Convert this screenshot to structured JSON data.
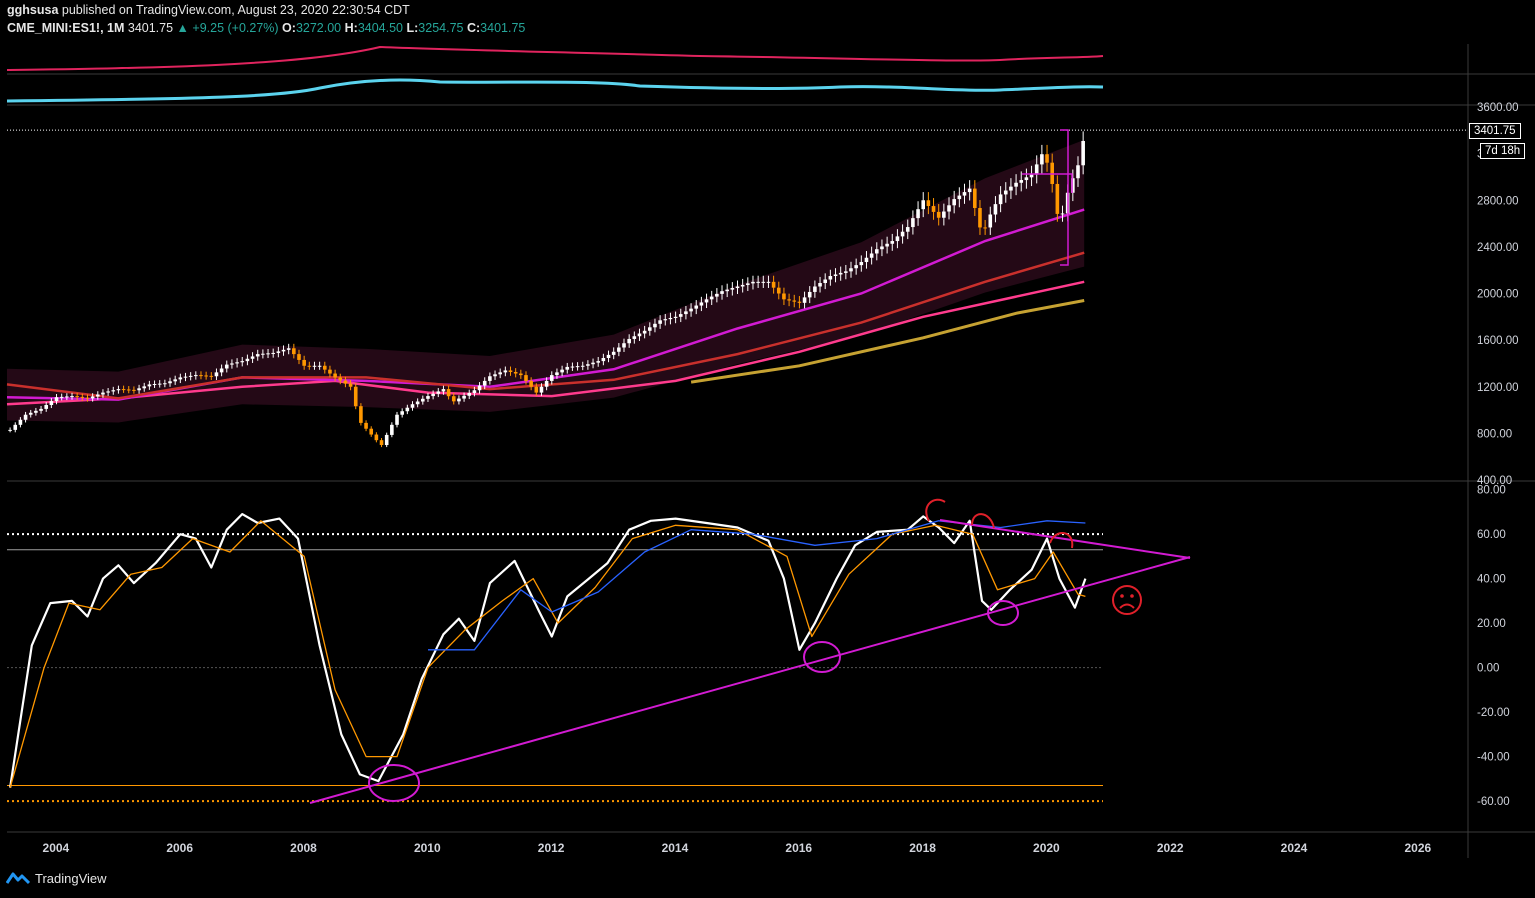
{
  "header": {
    "author": "gghsusa",
    "published_text": "published on TradingView.com, August 23, 2020 22:30:54 CDT",
    "symbol": "CME_MINI:ES1!, 1M",
    "last": "3401.75",
    "change": "▲ +9.25 (+0.27%)",
    "o_label": "O:",
    "o": "3272.00",
    "h_label": "H:",
    "h": "3404.50",
    "l_label": "L:",
    "l": "3254.75",
    "c_label": "C:",
    "c": "3401.75"
  },
  "price_tag": "3401.75",
  "countdown_tag": "7d 18h",
  "footer": {
    "brand": "TradingView"
  },
  "colors": {
    "background": "#000000",
    "accent_up": "#26a69a",
    "price_candle_up": "#ffffff",
    "price_candle_down": "#ff9800",
    "annotation": "#d21bd2",
    "annotation_red": "#e0202a"
  },
  "chart_data": [
    {
      "type": "candlestick",
      "panel": "price",
      "y_ticks": [
        "3600.00",
        "3200.00",
        "2800.00",
        "2400.00",
        "2000.00",
        "1600.00",
        "1200.00",
        "800.00",
        "400.00"
      ],
      "ylim": [
        400,
        3600
      ],
      "x_ticks": [
        "2004",
        "2006",
        "2008",
        "2010",
        "2012",
        "2014",
        "2016",
        "2018",
        "2020",
        "2022",
        "2024",
        "2026"
      ],
      "xlim": [
        2003.2,
        2026.8
      ],
      "last_price": 3401.75,
      "price_series": [
        [
          2003.25,
          830
        ],
        [
          2003.5,
          960
        ],
        [
          2003.75,
          1010
        ],
        [
          2004.0,
          1110
        ],
        [
          2004.25,
          1120
        ],
        [
          2004.5,
          1100
        ],
        [
          2004.75,
          1150
        ],
        [
          2005.0,
          1180
        ],
        [
          2005.25,
          1170
        ],
        [
          2005.5,
          1220
        ],
        [
          2005.75,
          1230
        ],
        [
          2006.0,
          1280
        ],
        [
          2006.25,
          1300
        ],
        [
          2006.5,
          1290
        ],
        [
          2006.75,
          1390
        ],
        [
          2007.0,
          1420
        ],
        [
          2007.25,
          1480
        ],
        [
          2007.5,
          1490
        ],
        [
          2007.75,
          1530
        ],
        [
          2008.0,
          1380
        ],
        [
          2008.25,
          1380
        ],
        [
          2008.5,
          1280
        ],
        [
          2008.75,
          1200
        ],
        [
          2008.9,
          900
        ],
        [
          2009.15,
          750
        ],
        [
          2009.25,
          700
        ],
        [
          2009.5,
          960
        ],
        [
          2009.75,
          1050
        ],
        [
          2010.0,
          1120
        ],
        [
          2010.25,
          1180
        ],
        [
          2010.4,
          1070
        ],
        [
          2010.75,
          1170
        ],
        [
          2011.0,
          1290
        ],
        [
          2011.25,
          1340
        ],
        [
          2011.5,
          1300
        ],
        [
          2011.75,
          1150
        ],
        [
          2012.0,
          1300
        ],
        [
          2012.25,
          1370
        ],
        [
          2012.5,
          1380
        ],
        [
          2012.75,
          1420
        ],
        [
          2013.0,
          1500
        ],
        [
          2013.25,
          1610
        ],
        [
          2013.5,
          1680
        ],
        [
          2013.75,
          1770
        ],
        [
          2014.0,
          1800
        ],
        [
          2014.25,
          1870
        ],
        [
          2014.5,
          1950
        ],
        [
          2014.75,
          2020
        ],
        [
          2015.0,
          2060
        ],
        [
          2015.25,
          2100
        ],
        [
          2015.5,
          2100
        ],
        [
          2015.75,
          1950
        ],
        [
          2016.0,
          1920
        ],
        [
          2016.25,
          2060
        ],
        [
          2016.5,
          2150
        ],
        [
          2016.75,
          2190
        ],
        [
          2017.0,
          2270
        ],
        [
          2017.25,
          2380
        ],
        [
          2017.5,
          2450
        ],
        [
          2017.75,
          2570
        ],
        [
          2018.0,
          2800
        ],
        [
          2018.25,
          2650
        ],
        [
          2018.5,
          2810
        ],
        [
          2018.75,
          2900
        ],
        [
          2018.95,
          2500
        ],
        [
          2019.1,
          2700
        ],
        [
          2019.25,
          2850
        ],
        [
          2019.5,
          2950
        ],
        [
          2019.75,
          3020
        ],
        [
          2019.95,
          3230
        ],
        [
          2020.08,
          2950
        ],
        [
          2020.2,
          2580
        ],
        [
          2020.35,
          2900
        ],
        [
          2020.5,
          3100
        ],
        [
          2020.62,
          3400
        ]
      ],
      "moving_averages": [
        {
          "color": "#ff3b8d",
          "values": [
            [
              2003.2,
              1050
            ],
            [
              2005,
              1100
            ],
            [
              2007,
              1200
            ],
            [
              2008.5,
              1250
            ],
            [
              2010,
              1150
            ],
            [
              2012,
              1120
            ],
            [
              2014,
              1250
            ],
            [
              2016,
              1500
            ],
            [
              2018,
              1800
            ],
            [
              2020.6,
              2100
            ]
          ]
        },
        {
          "color": "#d21bd2",
          "values": [
            [
              2003.2,
              1110
            ],
            [
              2005,
              1090
            ],
            [
              2007,
              1280
            ],
            [
              2009,
              1250
            ],
            [
              2011,
              1200
            ],
            [
              2013,
              1350
            ],
            [
              2015,
              1700
            ],
            [
              2017,
              2000
            ],
            [
              2019,
              2450
            ],
            [
              2020.6,
              2720
            ]
          ]
        },
        {
          "color": "#c9302c",
          "values": [
            [
              2003.2,
              1220
            ],
            [
              2005,
              1100
            ],
            [
              2007,
              1280
            ],
            [
              2009,
              1280
            ],
            [
              2011,
              1180
            ],
            [
              2013,
              1260
            ],
            [
              2015,
              1480
            ],
            [
              2017,
              1750
            ],
            [
              2019,
              2100
            ],
            [
              2020.6,
              2350
            ]
          ]
        },
        {
          "color": "#c6a232",
          "values": [
            [
              2014.25,
              1240
            ],
            [
              2016,
              1380
            ],
            [
              2018,
              1620
            ],
            [
              2019.5,
              1830
            ],
            [
              2020.6,
              1940
            ]
          ]
        }
      ]
    },
    {
      "type": "line",
      "panel": "oscillator",
      "y_ticks": [
        "80.00",
        "60.00",
        "40.00",
        "20.00",
        "0.00",
        "-20.00",
        "-40.00",
        "-60.00"
      ],
      "ylim": [
        -73,
        83
      ],
      "reference_levels": [
        60,
        53,
        0,
        -53,
        -60
      ],
      "series": [
        {
          "color": "#ffffff",
          "values": [
            [
              2003.25,
              -54
            ],
            [
              2003.6,
              10
            ],
            [
              2003.9,
              29
            ],
            [
              2004.25,
              30
            ],
            [
              2004.5,
              23
            ],
            [
              2004.75,
              40
            ],
            [
              2005.0,
              46
            ],
            [
              2005.25,
              38
            ],
            [
              2005.6,
              47
            ],
            [
              2006.0,
              60
            ],
            [
              2006.25,
              58
            ],
            [
              2006.5,
              45
            ],
            [
              2006.75,
              62
            ],
            [
              2007.0,
              69
            ],
            [
              2007.25,
              65
            ],
            [
              2007.6,
              67
            ],
            [
              2007.9,
              58
            ],
            [
              2008.25,
              10
            ],
            [
              2008.6,
              -30
            ],
            [
              2008.9,
              -48
            ],
            [
              2009.2,
              -51
            ],
            [
              2009.6,
              -30
            ],
            [
              2009.9,
              -5
            ],
            [
              2010.25,
              15
            ],
            [
              2010.5,
              22
            ],
            [
              2010.75,
              12
            ],
            [
              2011.0,
              38
            ],
            [
              2011.4,
              48
            ],
            [
              2011.8,
              25
            ],
            [
              2012.0,
              14
            ],
            [
              2012.25,
              32
            ],
            [
              2012.6,
              40
            ],
            [
              2012.9,
              47
            ],
            [
              2013.25,
              62
            ],
            [
              2013.6,
              66
            ],
            [
              2014.0,
              67
            ],
            [
              2014.5,
              65
            ],
            [
              2015.0,
              63
            ],
            [
              2015.5,
              57
            ],
            [
              2015.75,
              40
            ],
            [
              2016.0,
              8
            ],
            [
              2016.25,
              20
            ],
            [
              2016.6,
              40
            ],
            [
              2016.9,
              55
            ],
            [
              2017.25,
              61
            ],
            [
              2017.75,
              62
            ],
            [
              2018.0,
              68
            ],
            [
              2018.25,
              63
            ],
            [
              2018.5,
              56
            ],
            [
              2018.75,
              66
            ],
            [
              2018.95,
              30
            ],
            [
              2019.1,
              26
            ],
            [
              2019.4,
              35
            ],
            [
              2019.75,
              44
            ],
            [
              2020.0,
              58
            ],
            [
              2020.2,
              40
            ],
            [
              2020.45,
              27
            ],
            [
              2020.62,
              40
            ]
          ]
        },
        {
          "color": "#ff9800",
          "values": [
            [
              2003.25,
              -54
            ],
            [
              2003.8,
              0
            ],
            [
              2004.2,
              29
            ],
            [
              2004.7,
              26
            ],
            [
              2005.2,
              42
            ],
            [
              2005.7,
              45
            ],
            [
              2006.2,
              58
            ],
            [
              2006.8,
              52
            ],
            [
              2007.3,
              66
            ],
            [
              2008.0,
              50
            ],
            [
              2008.5,
              -10
            ],
            [
              2009.0,
              -40
            ],
            [
              2009.5,
              -40
            ],
            [
              2010.0,
              0
            ],
            [
              2010.6,
              17
            ],
            [
              2011.2,
              30
            ],
            [
              2011.7,
              40
            ],
            [
              2012.1,
              20
            ],
            [
              2012.7,
              36
            ],
            [
              2013.3,
              58
            ],
            [
              2014.0,
              64
            ],
            [
              2015.0,
              62
            ],
            [
              2015.8,
              50
            ],
            [
              2016.2,
              14
            ],
            [
              2016.8,
              42
            ],
            [
              2017.5,
              60
            ],
            [
              2018.2,
              64
            ],
            [
              2018.8,
              60
            ],
            [
              2019.2,
              35
            ],
            [
              2019.8,
              40
            ],
            [
              2020.1,
              52
            ],
            [
              2020.5,
              33
            ],
            [
              2020.62,
              32
            ]
          ]
        },
        {
          "color": "#2962ff",
          "values": [
            [
              2010.0,
              8
            ],
            [
              2010.75,
              8
            ],
            [
              2011.5,
              35
            ],
            [
              2012.0,
              25
            ],
            [
              2012.75,
              34
            ],
            [
              2013.5,
              52
            ],
            [
              2014.25,
              62
            ],
            [
              2015.25,
              60
            ],
            [
              2016.25,
              55
            ],
            [
              2017.25,
              58
            ],
            [
              2018.25,
              66
            ],
            [
              2019.25,
              63
            ],
            [
              2020.0,
              66
            ],
            [
              2020.62,
              65
            ]
          ]
        }
      ]
    }
  ]
}
